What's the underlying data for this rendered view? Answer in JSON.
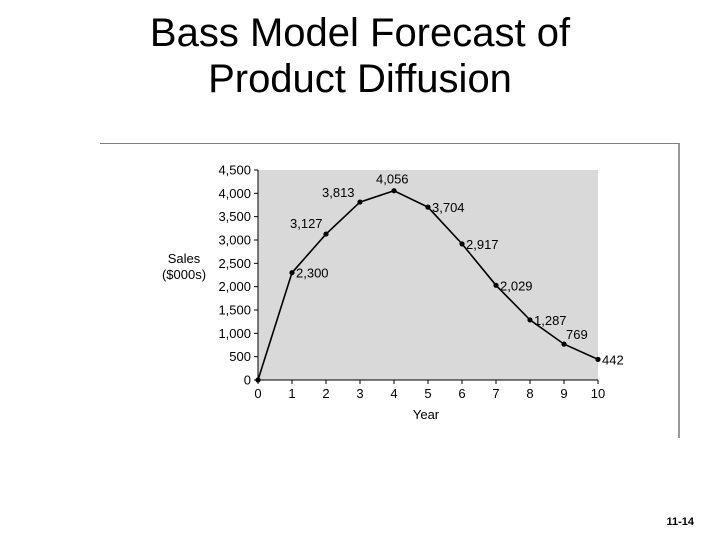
{
  "slide": {
    "title_line1": "Bass Model Forecast of",
    "title_line2": "Product Diffusion",
    "number": "11-14"
  },
  "colors": {
    "plot_bg": "#d9d9d9",
    "line": "#000000",
    "axis": "#000000"
  },
  "chart_data": {
    "type": "line",
    "x": [
      0,
      1,
      2,
      3,
      4,
      5,
      6,
      7,
      8,
      9,
      10
    ],
    "series": [
      {
        "values": [
          0,
          2300,
          3127,
          3813,
          4056,
          3704,
          2917,
          2029,
          1287,
          769,
          442
        ],
        "labels": [
          "",
          "2,300",
          "3,127",
          "3,813",
          "4,056",
          "3,704",
          "2,917",
          "2,029",
          "1,287",
          "769",
          "442"
        ]
      }
    ],
    "xlabel": "Year",
    "ylabel_line1": "Sales",
    "ylabel_line2": "($000s)",
    "xlim": [
      0,
      10
    ],
    "ylim": [
      0,
      4500
    ],
    "x_ticks": [
      "0",
      "1",
      "2",
      "3",
      "4",
      "5",
      "6",
      "7",
      "8",
      "9",
      "10"
    ],
    "y_ticks": [
      "0",
      "500",
      "1,000",
      "1,500",
      "2,000",
      "2,500",
      "3,000",
      "3,500",
      "4,000",
      "4,500"
    ],
    "grid": false,
    "legend": "none"
  }
}
